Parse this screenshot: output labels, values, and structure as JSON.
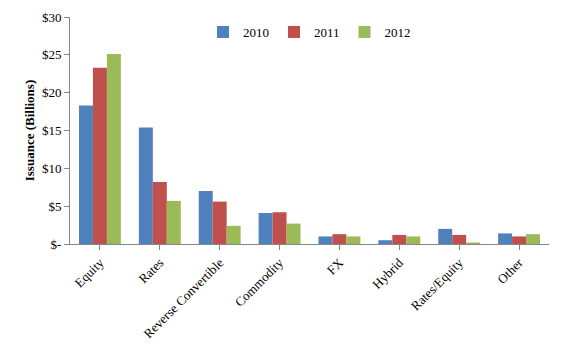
{
  "chart_data": {
    "type": "bar",
    "y_label": "Issuance (Billions)",
    "categories": [
      "Equity",
      "Rates",
      "Reverse Convertible",
      "Commodity",
      "FX",
      "Hybrid",
      "Rates/Equity",
      "Other"
    ],
    "series": [
      {
        "name": "2010",
        "color": "#4F81BD",
        "values": [
          18.3,
          15.4,
          7.0,
          4.1,
          1.0,
          0.5,
          2.0,
          1.4
        ]
      },
      {
        "name": "2011",
        "color": "#C0504D",
        "values": [
          23.3,
          8.2,
          5.6,
          4.2,
          1.3,
          1.2,
          1.2,
          1.0
        ]
      },
      {
        "name": "2012",
        "color": "#9BBB59",
        "values": [
          25.1,
          5.7,
          2.4,
          2.7,
          1.0,
          1.0,
          0.2,
          1.3
        ]
      }
    ],
    "ylim": [
      0,
      30
    ],
    "yticks": [
      {
        "value": 0,
        "label": "$-"
      },
      {
        "value": 5,
        "label": "$5"
      },
      {
        "value": 10,
        "label": "$10"
      },
      {
        "value": 15,
        "label": "$15"
      },
      {
        "value": 20,
        "label": "$20"
      },
      {
        "value": 25,
        "label": "$25"
      },
      {
        "value": 30,
        "label": "$30"
      }
    ],
    "grid": false,
    "legend": "top"
  }
}
